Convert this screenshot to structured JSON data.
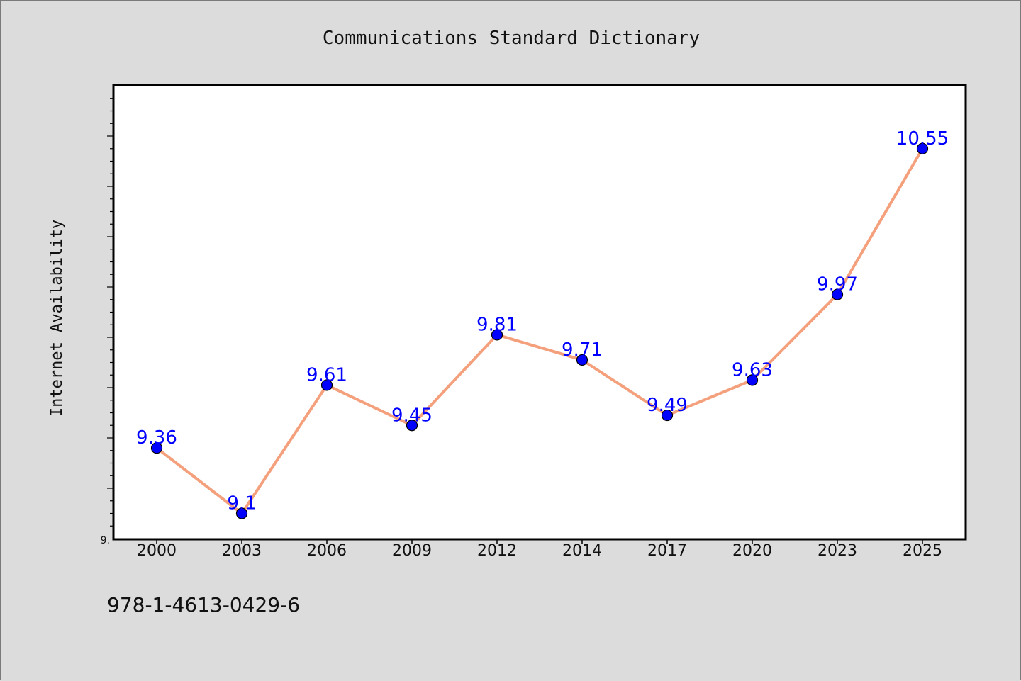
{
  "chart_data": {
    "type": "line",
    "title": "Communications Standard Dictionary",
    "ylabel": "Internet Availability",
    "xlabel": "",
    "categories": [
      "2000",
      "2003",
      "2006",
      "2009",
      "2012",
      "2014",
      "2017",
      "2020",
      "2023",
      "2025"
    ],
    "series": [
      {
        "values": [
          9.36,
          9.1,
          9.61,
          9.45,
          9.81,
          9.71,
          9.49,
          9.63,
          9.97,
          10.55
        ]
      }
    ],
    "data_labels": [
      "9.36",
      "9.1",
      "9.61",
      "9.45",
      "9.81",
      "9.71",
      "9.49",
      "9.63",
      "9.97",
      "10.55"
    ],
    "ylim": [
      9.0,
      10.8
    ],
    "y_tick_label": "9.",
    "grid": false,
    "legend": "none",
    "colors": {
      "line": "#f4a07c",
      "marker": "#0000ff",
      "label": "#0000ff",
      "plot_bg": "#ffffff",
      "page_bg": "#dcdcdc"
    }
  },
  "footer": {
    "isbn": "978-1-4613-0429-6"
  }
}
